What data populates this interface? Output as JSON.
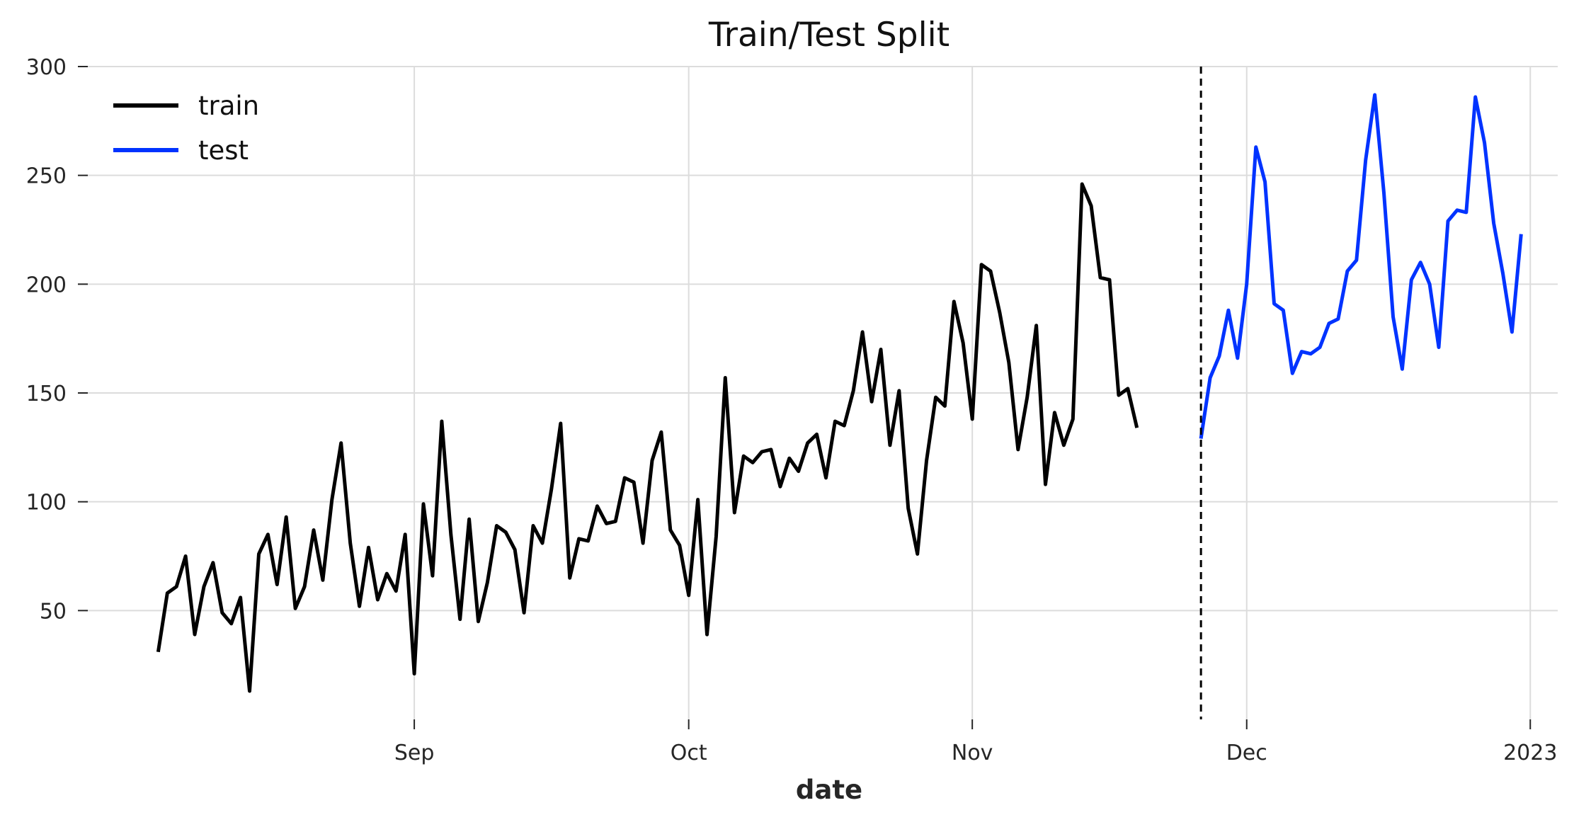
{
  "chart_data": {
    "type": "line",
    "title": "Train/Test Split",
    "xlabel": "date",
    "ylabel": "",
    "x_start": "2022-08-04",
    "x_step": "1 day",
    "ylim": [
      0,
      300
    ],
    "yticks": [
      50,
      100,
      150,
      200,
      250,
      300
    ],
    "xticks": [
      {
        "date": "2022-09-01",
        "label": "Sep"
      },
      {
        "date": "2022-10-01",
        "label": "Oct"
      },
      {
        "date": "2022-11-01",
        "label": "Nov"
      },
      {
        "date": "2022-12-01",
        "label": "Dec"
      },
      {
        "date": "2023-01-01",
        "label": "2023"
      }
    ],
    "xlim": [
      "2022-07-27",
      "2023-01-04"
    ],
    "split_date": "2022-11-26",
    "grid": true,
    "legend_position": "top-left",
    "series": [
      {
        "name": "train",
        "color": "#000000",
        "start_date": "2022-08-04",
        "values": [
          31,
          58,
          61,
          75,
          39,
          61,
          72,
          49,
          44,
          56,
          13,
          76,
          85,
          62,
          93,
          51,
          61,
          87,
          64,
          101,
          127,
          81,
          52,
          79,
          55,
          67,
          59,
          85,
          21,
          99,
          66,
          137,
          85,
          46,
          92,
          45,
          63,
          89,
          86,
          78,
          49,
          89,
          81,
          106,
          136,
          65,
          83,
          82,
          98,
          90,
          91,
          111,
          109,
          81,
          119,
          132,
          87,
          80,
          57,
          101,
          39,
          84,
          157,
          95,
          121,
          118,
          123,
          124,
          107,
          120,
          114,
          127,
          131,
          111,
          137,
          135,
          151,
          178,
          146,
          170,
          126,
          151,
          97,
          76,
          119,
          148,
          144,
          192,
          173,
          138,
          209,
          206,
          187,
          164,
          124,
          148,
          181,
          108,
          141,
          126,
          138,
          246,
          236,
          203,
          202,
          149,
          152,
          134
        ]
      },
      {
        "name": "test",
        "color": "#0033ff",
        "start_date": "2022-11-26",
        "values": [
          129,
          157,
          167,
          188,
          166,
          200,
          263,
          247,
          191,
          188,
          159,
          169,
          168,
          171,
          182,
          184,
          206,
          211,
          257,
          287,
          242,
          185,
          161,
          202,
          210,
          200,
          171,
          229,
          234,
          233,
          286,
          265,
          228,
          205,
          178,
          223
        ]
      }
    ]
  }
}
